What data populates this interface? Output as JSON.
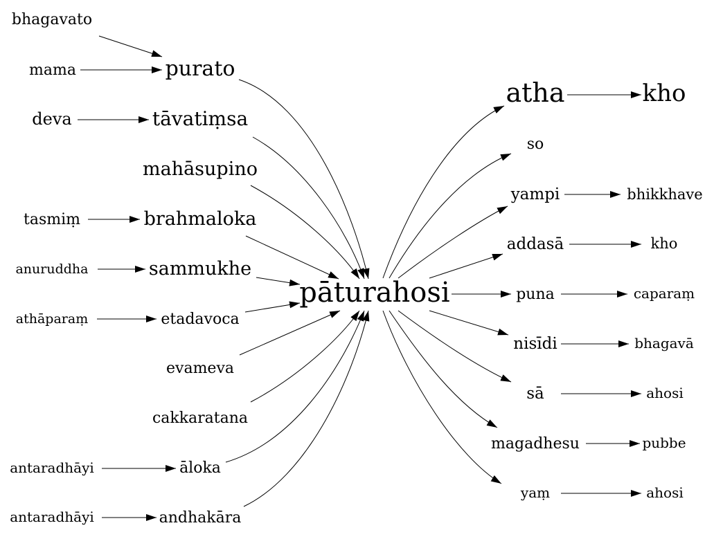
{
  "diagram": {
    "center": {
      "id": "paturahosi",
      "label": "pātura­hosi"
    },
    "nodes": [
      {
        "id": "bhagavato",
        "label": "bhagavato"
      },
      {
        "id": "mama",
        "label": "mama"
      },
      {
        "id": "purato",
        "label": "purato"
      },
      {
        "id": "deva",
        "label": "deva"
      },
      {
        "id": "tavatimsa",
        "label": "tāvatiṃsa"
      },
      {
        "id": "mahasupino",
        "label": "mahāsupino"
      },
      {
        "id": "tasmim",
        "label": "tasmiṃ"
      },
      {
        "id": "brahmaloka",
        "label": "brahmaloka"
      },
      {
        "id": "anuruddha",
        "label": "anuruddha"
      },
      {
        "id": "sammukhe",
        "label": "sammukhe"
      },
      {
        "id": "athaparam",
        "label": "athāparaṃ"
      },
      {
        "id": "etadavoca",
        "label": "etadavoca"
      },
      {
        "id": "evameva",
        "label": "evameva"
      },
      {
        "id": "cakkaratana",
        "label": "cakkaratana"
      },
      {
        "id": "antaradhayi1",
        "label": "antaradhāyi"
      },
      {
        "id": "aloka",
        "label": "āloka"
      },
      {
        "id": "antaradhayi2",
        "label": "antaradhāyi"
      },
      {
        "id": "andhakara",
        "label": "andhakāra"
      },
      {
        "id": "atha",
        "label": "atha"
      },
      {
        "id": "kho1",
        "label": "kho"
      },
      {
        "id": "so",
        "label": "so"
      },
      {
        "id": "yampi",
        "label": "yampi"
      },
      {
        "id": "bhikkhave",
        "label": "bhikkhave"
      },
      {
        "id": "addasa",
        "label": "addasā"
      },
      {
        "id": "kho2",
        "label": "kho"
      },
      {
        "id": "puna",
        "label": "puna"
      },
      {
        "id": "caparam",
        "label": "caparaṃ"
      },
      {
        "id": "nisidi",
        "label": "nisīdi"
      },
      {
        "id": "bhagava",
        "label": "bhagavā"
      },
      {
        "id": "sa",
        "label": "sā"
      },
      {
        "id": "ahosi1",
        "label": "ahosi"
      },
      {
        "id": "magadhesu",
        "label": "magadhesu"
      },
      {
        "id": "pubbe",
        "label": "pubbe"
      },
      {
        "id": "yam",
        "label": "yaṃ"
      },
      {
        "id": "ahosi2",
        "label": "ahosi"
      }
    ],
    "edges": [
      {
        "from": "bhagavato",
        "to": "purato"
      },
      {
        "from": "mama",
        "to": "purato"
      },
      {
        "from": "deva",
        "to": "tavatimsa"
      },
      {
        "from": "tasmim",
        "to": "brahmaloka"
      },
      {
        "from": "anuruddha",
        "to": "sammukhe"
      },
      {
        "from": "athaparam",
        "to": "etadavoca"
      },
      {
        "from": "antaradhayi1",
        "to": "aloka"
      },
      {
        "from": "antaradhayi2",
        "to": "andhakara"
      },
      {
        "from": "purato",
        "to": "paturahosi"
      },
      {
        "from": "tavatimsa",
        "to": "paturahosi"
      },
      {
        "from": "mahasupino",
        "to": "paturahosi"
      },
      {
        "from": "brahmaloka",
        "to": "paturahosi"
      },
      {
        "from": "sammukhe",
        "to": "paturahosi"
      },
      {
        "from": "etadavoca",
        "to": "paturahosi"
      },
      {
        "from": "evameva",
        "to": "paturahosi"
      },
      {
        "from": "cakkaratana",
        "to": "paturahosi"
      },
      {
        "from": "aloka",
        "to": "paturahosi"
      },
      {
        "from": "andhakara",
        "to": "paturahosi"
      },
      {
        "from": "paturahosi",
        "to": "atha"
      },
      {
        "from": "paturahosi",
        "to": "so"
      },
      {
        "from": "paturahosi",
        "to": "yampi"
      },
      {
        "from": "paturahosi",
        "to": "addasa"
      },
      {
        "from": "paturahosi",
        "to": "puna"
      },
      {
        "from": "paturahosi",
        "to": "nisidi"
      },
      {
        "from": "paturahosi",
        "to": "sa"
      },
      {
        "from": "paturahosi",
        "to": "magadhesu"
      },
      {
        "from": "paturahosi",
        "to": "yam"
      },
      {
        "from": "atha",
        "to": "kho1"
      },
      {
        "from": "yampi",
        "to": "bhikkhave"
      },
      {
        "from": "addasa",
        "to": "kho2"
      },
      {
        "from": "puna",
        "to": "caparam"
      },
      {
        "from": "nisidi",
        "to": "bhagava"
      },
      {
        "from": "sa",
        "to": "ahosi1"
      },
      {
        "from": "magadhesu",
        "to": "pubbe"
      },
      {
        "from": "yam",
        "to": "ahosi2"
      }
    ]
  }
}
